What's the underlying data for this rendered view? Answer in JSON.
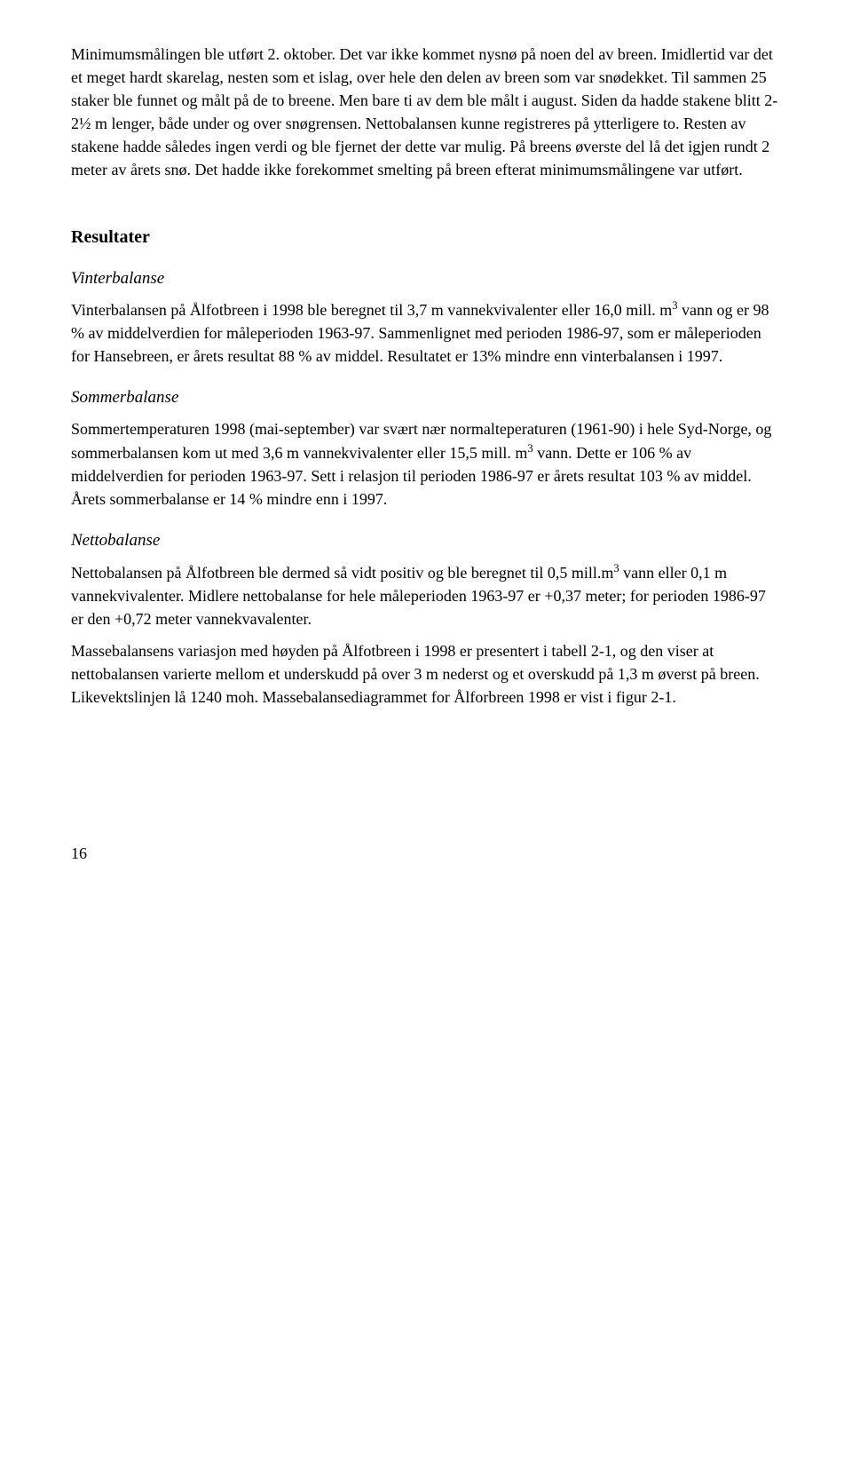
{
  "paragraphs": {
    "intro": "Minimumsmålingen ble utført 2. oktober. Det var ikke kommet nysnø på noen del av breen. Imidlertid var det et meget hardt skarelag, nesten som et islag, over hele den delen av breen som var snødekket. Til sammen 25 staker ble funnet og målt på de to breene. Men bare ti av dem ble målt i august. Siden da hadde stakene blitt 2-2½ m lenger, både under og over snøgrensen. Nettobalansen kunne registreres på ytterligere to. Resten av stakene hadde således ingen verdi og ble fjernet der dette var mulig. På breens øverste del lå det igjen rundt 2 meter av årets snø. Det hadde ikke forekommet smelting på breen efterat minimumsmålingene var utført."
  },
  "resultater": {
    "heading": "Resultater",
    "vinterbalanse": {
      "title": "Vinterbalanse",
      "text": "Vinterbalansen på Ålfotbreen i 1998 ble beregnet til 3,7 m vannekvivalenter eller 16,0 mill. m³ vann og er 98 % av middelverdien for måleperioden 1963-97. Sammenlignet med perioden 1986-97, som er måleperioden for Hansebreen, er årets resultat 88 % av middel. Resultatet er 13% mindre enn vinterbalansen i 1997."
    },
    "sommerbalanse": {
      "title": "Sommerbalanse",
      "text": "Sommertemperaturen 1998 (mai-september) var svært nær normalteperaturen (1961-90) i hele Syd-Norge, og sommerbalansen kom ut med 3,6 m vannekvivalenter eller 15,5 mill. m³ vann. Dette er 106 % av middelverdien for perioden 1963-97. Sett i relasjon til perioden 1986-97 er årets resultat 103 % av middel. Årets sommerbalanse er 14 % mindre enn i 1997."
    },
    "nettobalanse": {
      "title": "Nettobalanse",
      "p1": "Nettobalansen på Ålfotbreen ble dermed så vidt positiv og ble beregnet til 0,5 mill.m³ vann eller 0,1 m vannekvivalenter. Midlere nettobalanse for hele måleperioden 1963-97 er +0,37 meter; for perioden 1986-97 er den +0,72 meter vannekvavalenter.",
      "p2": "Massebalansens variasjon med høyden på Ålfotbreen i 1998 er presentert i tabell 2-1, og den viser at nettobalansen varierte mellom et underskudd på over 3 m nederst og et overskudd på 1,3 m øverst på breen. Likevektslinjen lå 1240 moh. Massebalansediagrammet for Ålforbreen 1998 er vist i figur 2-1."
    }
  },
  "page_number": "16"
}
